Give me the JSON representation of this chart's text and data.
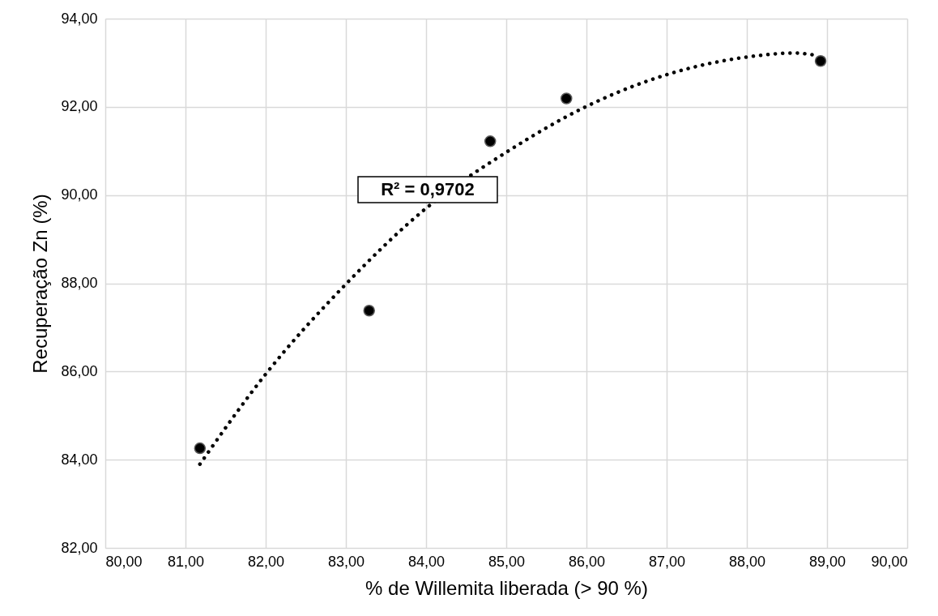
{
  "chart_data": {
    "type": "scatter",
    "xlabel": "% de Willemita liberada (> 90 %)",
    "ylabel": "Recuperação Zn (%)",
    "xlim": [
      80,
      90
    ],
    "ylim": [
      82,
      94
    ],
    "xticks": [
      {
        "value": 80,
        "label": "80,00"
      },
      {
        "value": 81,
        "label": "81,00"
      },
      {
        "value": 82,
        "label": "82,00"
      },
      {
        "value": 83,
        "label": "83,00"
      },
      {
        "value": 84,
        "label": "84,00"
      },
      {
        "value": 85,
        "label": "85,00"
      },
      {
        "value": 86,
        "label": "86,00"
      },
      {
        "value": 87,
        "label": "87,00"
      },
      {
        "value": 88,
        "label": "88,00"
      },
      {
        "value": 89,
        "label": "89,00"
      },
      {
        "value": 90,
        "label": "90,00"
      }
    ],
    "yticks": [
      {
        "value": 82,
        "label": "82,00"
      },
      {
        "value": 84,
        "label": "84,00"
      },
      {
        "value": 86,
        "label": "86,00"
      },
      {
        "value": 88,
        "label": "88,00"
      },
      {
        "value": 90,
        "label": "90,00"
      },
      {
        "value": 92,
        "label": "92,00"
      },
      {
        "value": 94,
        "label": "94,00"
      }
    ],
    "grid": true,
    "marker": "circle",
    "series": [
      {
        "color": "#000000",
        "x": [
          81.18,
          83.29,
          84.8,
          85.75,
          88.92
        ],
        "values": [
          84.26,
          87.38,
          91.22,
          92.19,
          93.04
        ]
      },
      {
        "type": "line",
        "color": "#000000",
        "line_style": "dotted",
        "marker": "none",
        "x": [
          81.18,
          82,
          83,
          84,
          85,
          86,
          87,
          88,
          88.6,
          88.86
        ],
        "values": [
          83.9,
          85.94,
          87.98,
          89.7,
          90.97,
          92.01,
          92.73,
          93.13,
          93.22,
          93.17
        ]
      }
    ],
    "annotations": [
      "R² = 0,9702"
    ]
  }
}
